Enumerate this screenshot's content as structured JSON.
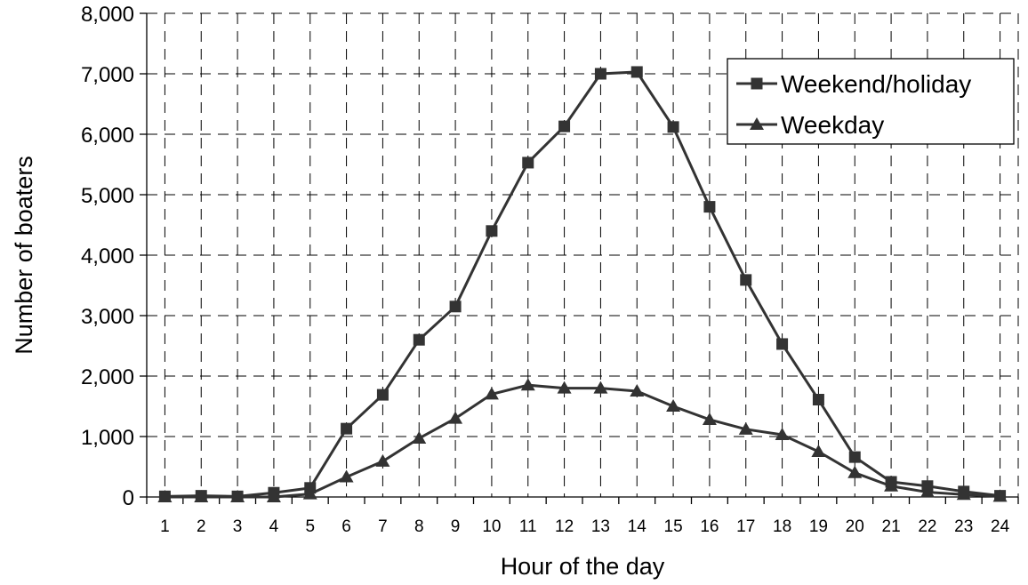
{
  "chart_data": {
    "type": "line",
    "title": "",
    "xlabel": "Hour of the day",
    "ylabel": "Number of boaters",
    "x": [
      1,
      2,
      3,
      4,
      5,
      6,
      7,
      8,
      9,
      10,
      11,
      12,
      13,
      14,
      15,
      16,
      17,
      18,
      19,
      20,
      21,
      22,
      23,
      24
    ],
    "ylim": [
      0,
      8000
    ],
    "yticks": [
      0,
      1000,
      2000,
      3000,
      4000,
      5000,
      6000,
      7000,
      8000
    ],
    "ytick_labels": [
      "0",
      "1,000",
      "2,000",
      "3,000",
      "4,000",
      "5,000",
      "6,000",
      "7,000",
      "8,000"
    ],
    "grid": true,
    "legend_position": "top-right",
    "series": [
      {
        "name": "Weekend/holiday",
        "marker": "square",
        "color": "#333333",
        "values": [
          10,
          20,
          10,
          70,
          150,
          1130,
          1690,
          2600,
          3150,
          4400,
          5530,
          6130,
          7000,
          7030,
          6120,
          4800,
          3590,
          2530,
          1610,
          660,
          250,
          180,
          90,
          20
        ]
      },
      {
        "name": "Weekday",
        "marker": "triangle",
        "color": "#333333",
        "values": [
          0,
          0,
          0,
          0,
          50,
          330,
          590,
          970,
          1300,
          1700,
          1850,
          1800,
          1800,
          1750,
          1500,
          1280,
          1120,
          1030,
          750,
          400,
          180,
          80,
          40,
          10
        ]
      }
    ]
  }
}
